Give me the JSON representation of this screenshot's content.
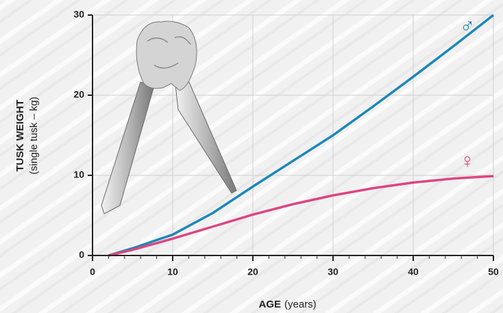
{
  "chart_data": {
    "type": "line",
    "y_label": "TUSK WEIGHT",
    "y_label_sub": "(single tusk – kg)",
    "x_label": "AGE",
    "x_label_sub": "(years)",
    "x": [
      2,
      5,
      10,
      15,
      20,
      25,
      30,
      35,
      40,
      45,
      50
    ],
    "series": [
      {
        "name": "♂",
        "color": "#1b87b9",
        "values": [
          0,
          0.9,
          2.6,
          5.3,
          8.6,
          11.8,
          15.0,
          18.6,
          22.3,
          26.1,
          30
        ]
      },
      {
        "name": "♀",
        "color": "#dd4580",
        "values": [
          0,
          0.7,
          2.1,
          3.6,
          5.1,
          6.4,
          7.5,
          8.4,
          9.1,
          9.6,
          9.9
        ]
      }
    ],
    "xlim": [
      0,
      50
    ],
    "xticks": [
      0,
      10,
      20,
      30,
      40,
      50
    ],
    "ylim": [
      0,
      30
    ],
    "yticks": [
      0,
      10,
      20,
      30
    ],
    "grid": true
  }
}
